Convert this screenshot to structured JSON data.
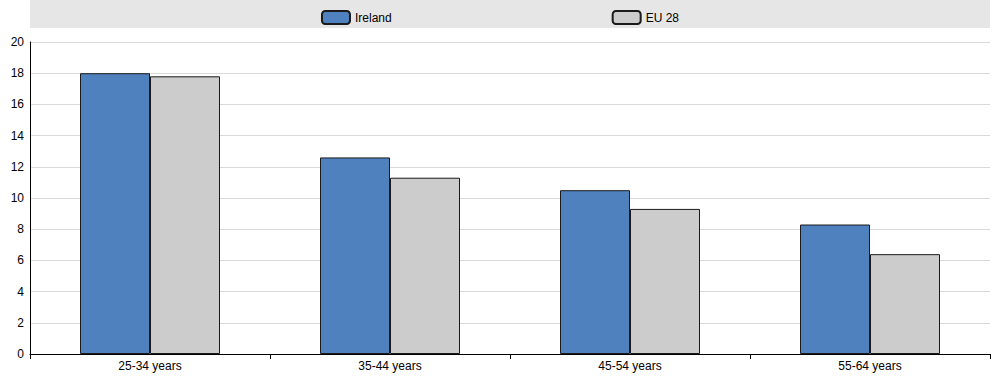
{
  "chart_data": {
    "type": "bar",
    "categories": [
      "25-34 years",
      "35-44 years",
      "45-54 years",
      "55-64 years"
    ],
    "series": [
      {
        "name": "Ireland",
        "color": "#4e81bd",
        "values": [
          18.0,
          12.6,
          10.5,
          8.3
        ]
      },
      {
        "name": "EU 28",
        "color": "#cccccc",
        "values": [
          17.8,
          11.3,
          9.3,
          6.4
        ]
      }
    ],
    "ylim": [
      0,
      20
    ],
    "yticks": [
      0,
      2,
      4,
      6,
      8,
      10,
      12,
      14,
      16,
      18,
      20
    ],
    "grid": true,
    "legend": "top"
  }
}
